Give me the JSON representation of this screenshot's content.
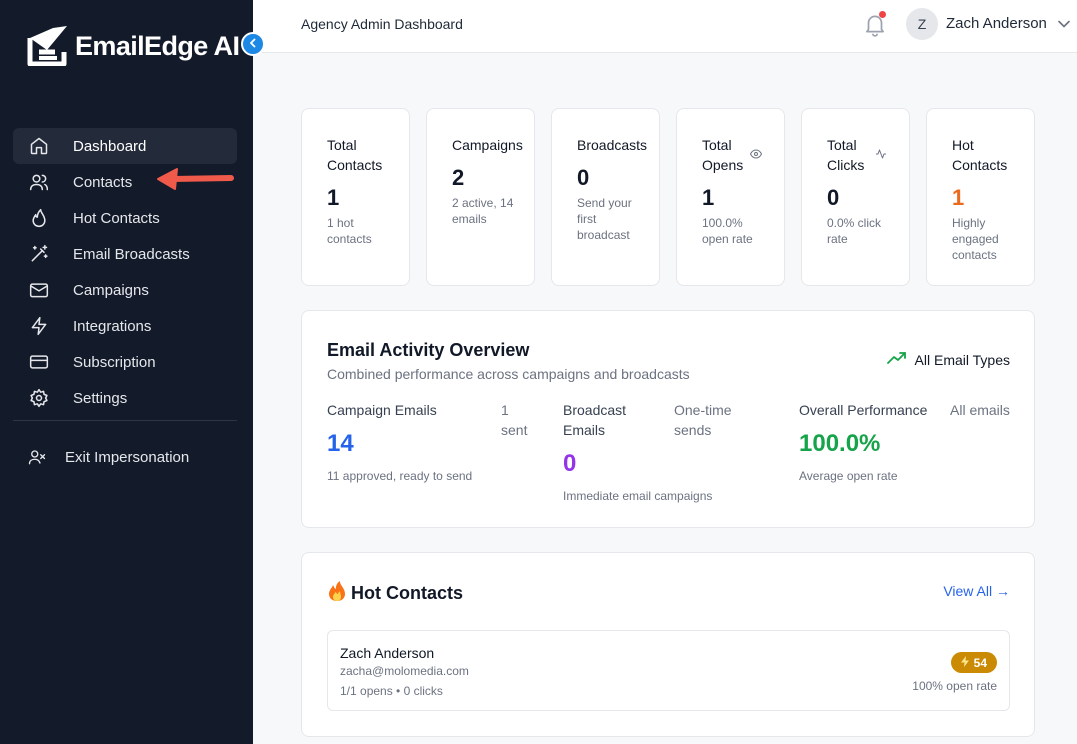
{
  "app": {
    "brand": "EmailEdge AI",
    "header_title": "Agency Admin Dashboard"
  },
  "user": {
    "initial": "Z",
    "name": "Zach Anderson"
  },
  "sidebar": {
    "items": [
      {
        "label": "Dashboard",
        "icon": "home-icon",
        "active": true
      },
      {
        "label": "Contacts",
        "icon": "users-icon"
      },
      {
        "label": "Hot Contacts",
        "icon": "flame-icon"
      },
      {
        "label": "Email Broadcasts",
        "icon": "magic-wand-icon"
      },
      {
        "label": "Campaigns",
        "icon": "mail-icon"
      },
      {
        "label": "Integrations",
        "icon": "zap-icon"
      },
      {
        "label": "Subscription",
        "icon": "credit-card-icon"
      },
      {
        "label": "Settings",
        "icon": "gear-icon"
      }
    ],
    "exit_label": "Exit Impersonation"
  },
  "stats": [
    {
      "title": "Total Contacts",
      "value": "1",
      "sub": "1 hot contacts"
    },
    {
      "title": "Campaigns",
      "value": "2",
      "sub": "2 active, 14 emails"
    },
    {
      "title": "Broadcasts",
      "value": "0",
      "sub": "Send your first broadcast"
    },
    {
      "title": "Total Opens",
      "value": "1",
      "sub": "100.0% open rate",
      "icon": "eye-icon"
    },
    {
      "title": "Total Clicks",
      "value": "0",
      "sub": "0.0% click rate",
      "icon": "activity-icon"
    },
    {
      "title": "Hot Contacts",
      "value": "1",
      "sub": "Highly engaged contacts"
    }
  ],
  "overview": {
    "title": "Email Activity Overview",
    "subtitle": "Combined performance across campaigns and broadcasts",
    "filter_label": "All Email Types",
    "columns": [
      {
        "label": "Campaign Emails",
        "side": "1 sent",
        "value": "14",
        "desc": "11 approved, ready to send",
        "color": "#2563eb"
      },
      {
        "label": "Broadcast Emails",
        "side": "One-time sends",
        "value": "0",
        "desc": "Immediate email campaigns",
        "color": "#9333ea"
      },
      {
        "label": "Overall Performance",
        "side": "All emails",
        "value": "100.0%",
        "desc": "Average open rate",
        "color": "#16a34a"
      }
    ]
  },
  "hot_contacts": {
    "title": "Hot Contacts",
    "view_all": "View All →",
    "items": [
      {
        "name": "Zach Anderson",
        "email": "zacha@molomedia.com",
        "stats": "1/1 opens • 0 clicks",
        "score": "54",
        "rate": "100% open rate"
      }
    ]
  },
  "colors": {
    "sidebar_bg": "#131a2a",
    "accent_blue": "#2563eb",
    "hot_orange": "#ea6a1e",
    "badge_gold": "#ca8a04",
    "annotation_arrow": "#ef5a4b"
  }
}
